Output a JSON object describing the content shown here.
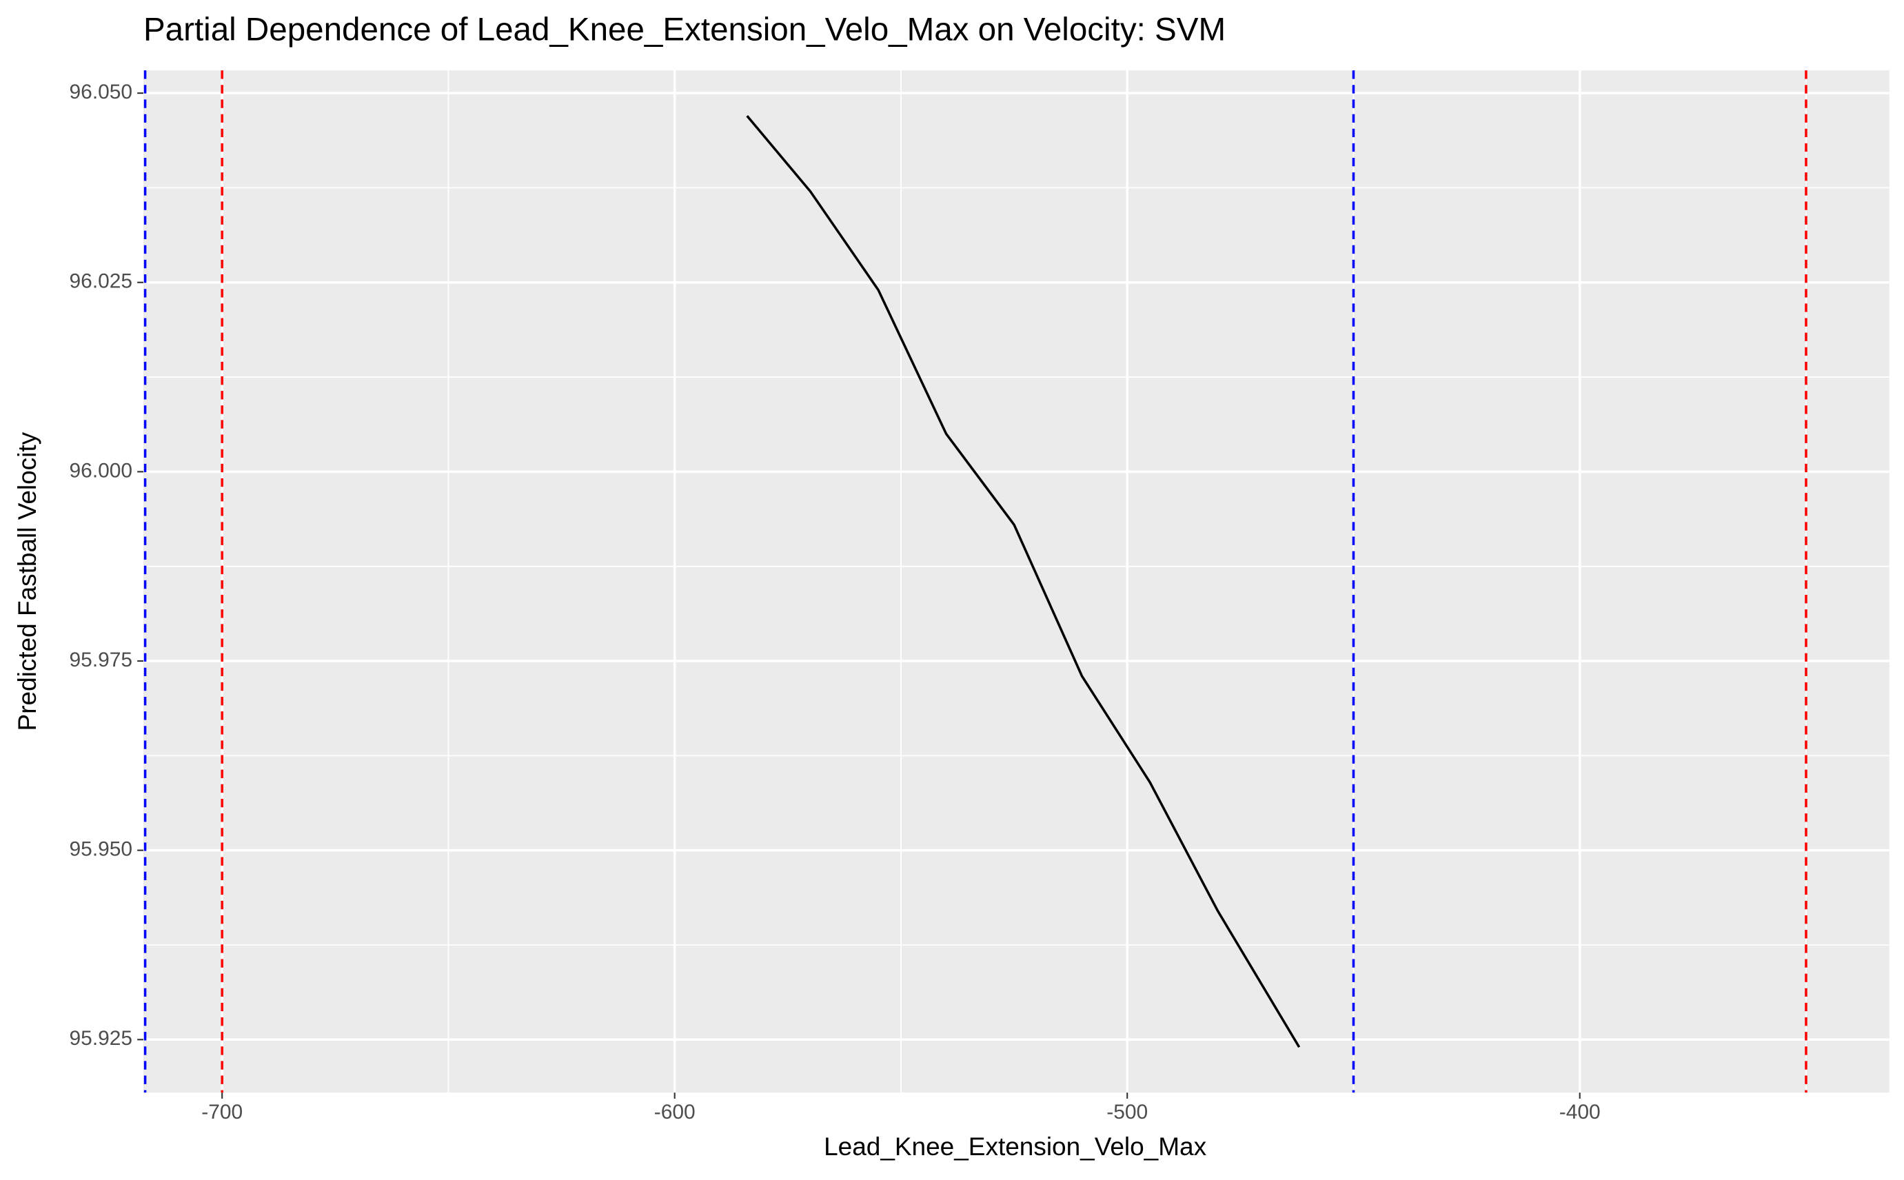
{
  "chart_data": {
    "type": "line",
    "title": "Partial Dependence of Lead_Knee_Extension_Velo_Max on Velocity: SVM",
    "x_label": "Lead_Knee_Extension_Velo_Max",
    "y_label": "Predicted Fastball Velocity",
    "x": [
      -584,
      -570,
      -555,
      -540,
      -525,
      -510,
      -495,
      -480,
      -462
    ],
    "series": [
      {
        "color": "#000000",
        "values": [
          96.047,
          96.037,
          96.024,
          96.005,
          95.993,
          95.973,
          95.959,
          95.942,
          95.924
        ]
      }
    ],
    "xlim": [
      -717.4,
      -331.6
    ],
    "ylim": [
      95.918,
      96.053
    ],
    "xticks": [
      -700,
      -600,
      -500,
      -400
    ],
    "x_minor_grid": [
      -650,
      -550,
      -450,
      -350
    ],
    "yticks": [
      {
        "value": 95.925,
        "label": "95.925"
      },
      {
        "value": 95.95,
        "label": "95.950"
      },
      {
        "value": 95.975,
        "label": "95.975"
      },
      {
        "value": 96.0,
        "label": "96.000"
      },
      {
        "value": 96.025,
        "label": "96.025"
      },
      {
        "value": 96.05,
        "label": "96.050"
      }
    ],
    "y_minor_grid": [
      95.9375,
      95.9625,
      95.9875,
      96.0125,
      96.0375
    ],
    "vlines": [
      {
        "x": -717,
        "color": "#0000ff"
      },
      {
        "x": -700,
        "color": "#ff0000"
      },
      {
        "x": -450,
        "color": "#0000ff"
      },
      {
        "x": -350,
        "color": "#ff0000"
      }
    ],
    "panel_color": "#ebebeb",
    "grid": true
  }
}
